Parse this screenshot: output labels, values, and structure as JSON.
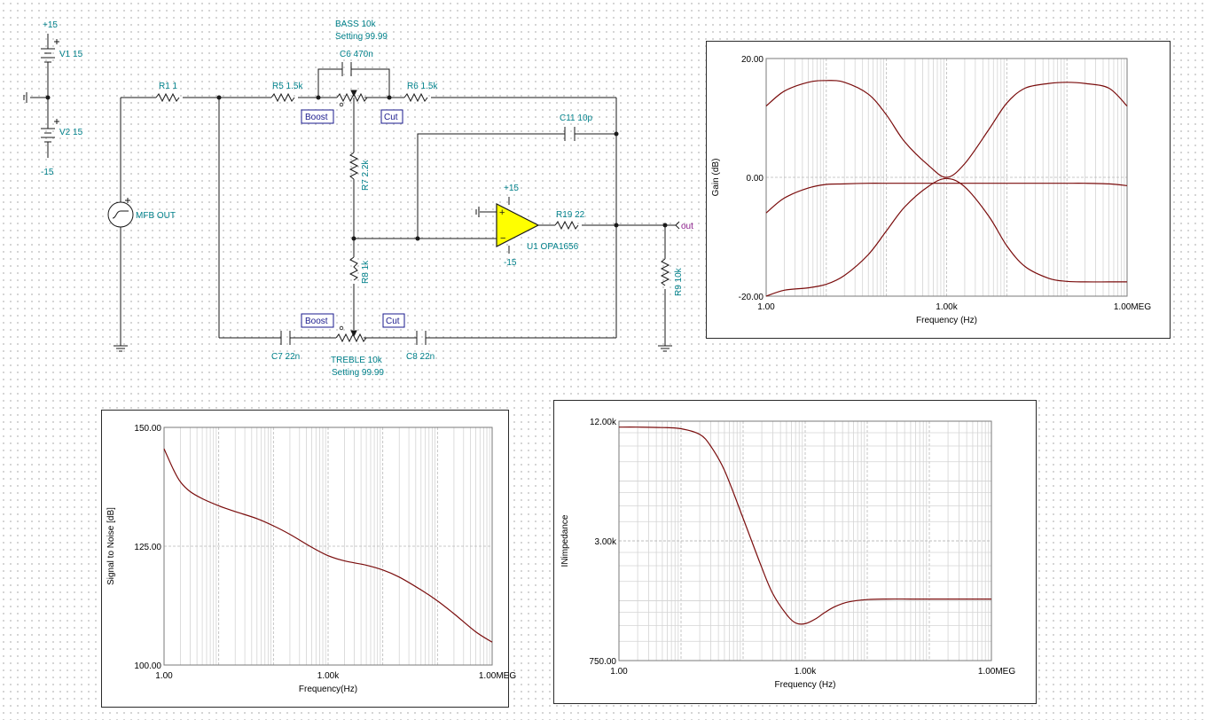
{
  "schematic": {
    "components": {
      "v1": "V1 15",
      "v2": "V2 15",
      "v_plus": "+15",
      "v_minus": "-15",
      "source": "MFB OUT",
      "r1": "R1 1",
      "r5": "R5 1.5k",
      "r6": "R6 1.5k",
      "bass_name": "BASS 10k",
      "bass_setting": "Setting 99.99",
      "c6": "C6 470n",
      "c11": "C11 10p",
      "r7": "R7 2.2k",
      "r8": "R8 1k",
      "opamp_plus": "+15",
      "opamp_minus": "-15",
      "opamp_name": "U1 OPA1656",
      "r19": "R19 22",
      "out_label": "out",
      "r9": "R9 10k",
      "c7": "C7 22n",
      "c8": "C8 22n",
      "treble_name": "TREBLE 10k",
      "treble_setting": "Setting 99.99",
      "boost_top": "Boost",
      "cut_top": "Cut",
      "boost_bottom": "Boost",
      "cut_bottom": "Cut"
    },
    "colors": {
      "wire": "#1a1a1a",
      "component_text": "#00808a",
      "opamp_fill": "#ffff00",
      "curve": "#7a0c0c"
    }
  },
  "charts": {
    "gain": {
      "ylabel": "Gain (dB)",
      "xlabel": "Frequency (Hz)",
      "yticks": [
        "20.00",
        "0.00",
        "-20.00"
      ],
      "xticks": [
        "1.00",
        "1.00k",
        "1.00MEG"
      ]
    },
    "snr": {
      "ylabel": "Signal to Noise [dB]",
      "xlabel": "Frequency(Hz)",
      "yticks": [
        "150.00",
        "125.00",
        "100.00"
      ],
      "xticks": [
        "1.00",
        "1.00k",
        "1.00MEG"
      ]
    },
    "impedance": {
      "ylabel": "INimpedance",
      "xlabel": "Frequency (Hz)",
      "yticks": [
        "12.00k",
        "3.00k",
        "750.00"
      ],
      "xticks": [
        "1.00",
        "1.00k",
        "1.00MEG"
      ]
    }
  },
  "chart_data": [
    {
      "type": "line",
      "title": "",
      "xlabel": "Frequency (Hz)",
      "ylabel": "Gain (dB)",
      "x_scale": "log",
      "xlim": [
        1,
        1000000
      ],
      "ylim": [
        -20,
        20
      ],
      "grid": true,
      "series": [
        {
          "x": [
            1,
            2,
            5,
            10,
            20,
            50,
            100,
            200,
            500,
            1000,
            2000,
            5000,
            10000,
            20000,
            50000,
            100000,
            200000,
            500000,
            1000000
          ],
          "values": [
            12,
            14.5,
            16,
            16.3,
            16,
            14,
            10.5,
            6,
            2,
            0,
            2.3,
            8,
            12.5,
            15,
            15.8,
            16,
            15.8,
            15,
            12
          ]
        },
        {
          "x": [
            1,
            2,
            5,
            10,
            20,
            50,
            100,
            200,
            500,
            1000,
            2000,
            5000,
            10000,
            20000,
            50000,
            100000,
            200000,
            500000,
            1000000
          ],
          "values": [
            -20,
            -19,
            -18.6,
            -18,
            -16.5,
            -13,
            -9,
            -5,
            -1.5,
            -0.2,
            -1.6,
            -6.5,
            -11.5,
            -15,
            -17,
            -17.5,
            -17.6,
            -17.6,
            -17.6
          ]
        },
        {
          "x": [
            1,
            2,
            5,
            10,
            20,
            50,
            100,
            200,
            500,
            1000,
            2000,
            5000,
            10000,
            20000,
            50000,
            100000,
            200000,
            500000,
            1000000
          ],
          "values": [
            -6,
            -3.5,
            -1.8,
            -1.2,
            -1.1,
            -1,
            -1,
            -1,
            -1,
            -1,
            -1,
            -1,
            -1,
            -1,
            -1,
            -1,
            -1,
            -1.1,
            -1.4
          ]
        }
      ]
    },
    {
      "type": "line",
      "title": "",
      "xlabel": "Frequency(Hz)",
      "ylabel": "Signal to Noise [dB]",
      "x_scale": "log",
      "xlim": [
        1,
        1000000
      ],
      "ylim": [
        100,
        150
      ],
      "grid": true,
      "series": [
        {
          "x": [
            1,
            1.5,
            2,
            3,
            5,
            10,
            20,
            50,
            100,
            200,
            500,
            1000,
            2000,
            5000,
            10000,
            20000,
            50000,
            100000,
            200000,
            500000,
            1000000
          ],
          "values": [
            145.5,
            141,
            138.5,
            136.5,
            135,
            133.5,
            132.3,
            130.8,
            129.3,
            127.5,
            124.8,
            123,
            121.9,
            121,
            120,
            118.5,
            115.8,
            113.5,
            110.8,
            107,
            104.8
          ]
        }
      ]
    },
    {
      "type": "line",
      "title": "",
      "xlabel": "Frequency (Hz)",
      "ylabel": "INimpedance",
      "x_scale": "log",
      "y_scale": "log",
      "xlim": [
        1,
        1000000
      ],
      "ylim": [
        750,
        12000
      ],
      "grid": true,
      "series": [
        {
          "x": [
            1,
            2,
            5,
            10,
            20,
            30,
            50,
            100,
            200,
            300,
            500,
            700,
            1000,
            1500,
            2000,
            3000,
            5000,
            10000,
            20000,
            50000,
            100000,
            200000,
            500000,
            1000000
          ],
          "values": [
            11200,
            11200,
            11150,
            11000,
            10300,
            9000,
            6800,
            3900,
            2200,
            1630,
            1280,
            1160,
            1150,
            1220,
            1300,
            1400,
            1480,
            1520,
            1530,
            1530,
            1530,
            1530,
            1530,
            1530
          ]
        }
      ]
    }
  ]
}
